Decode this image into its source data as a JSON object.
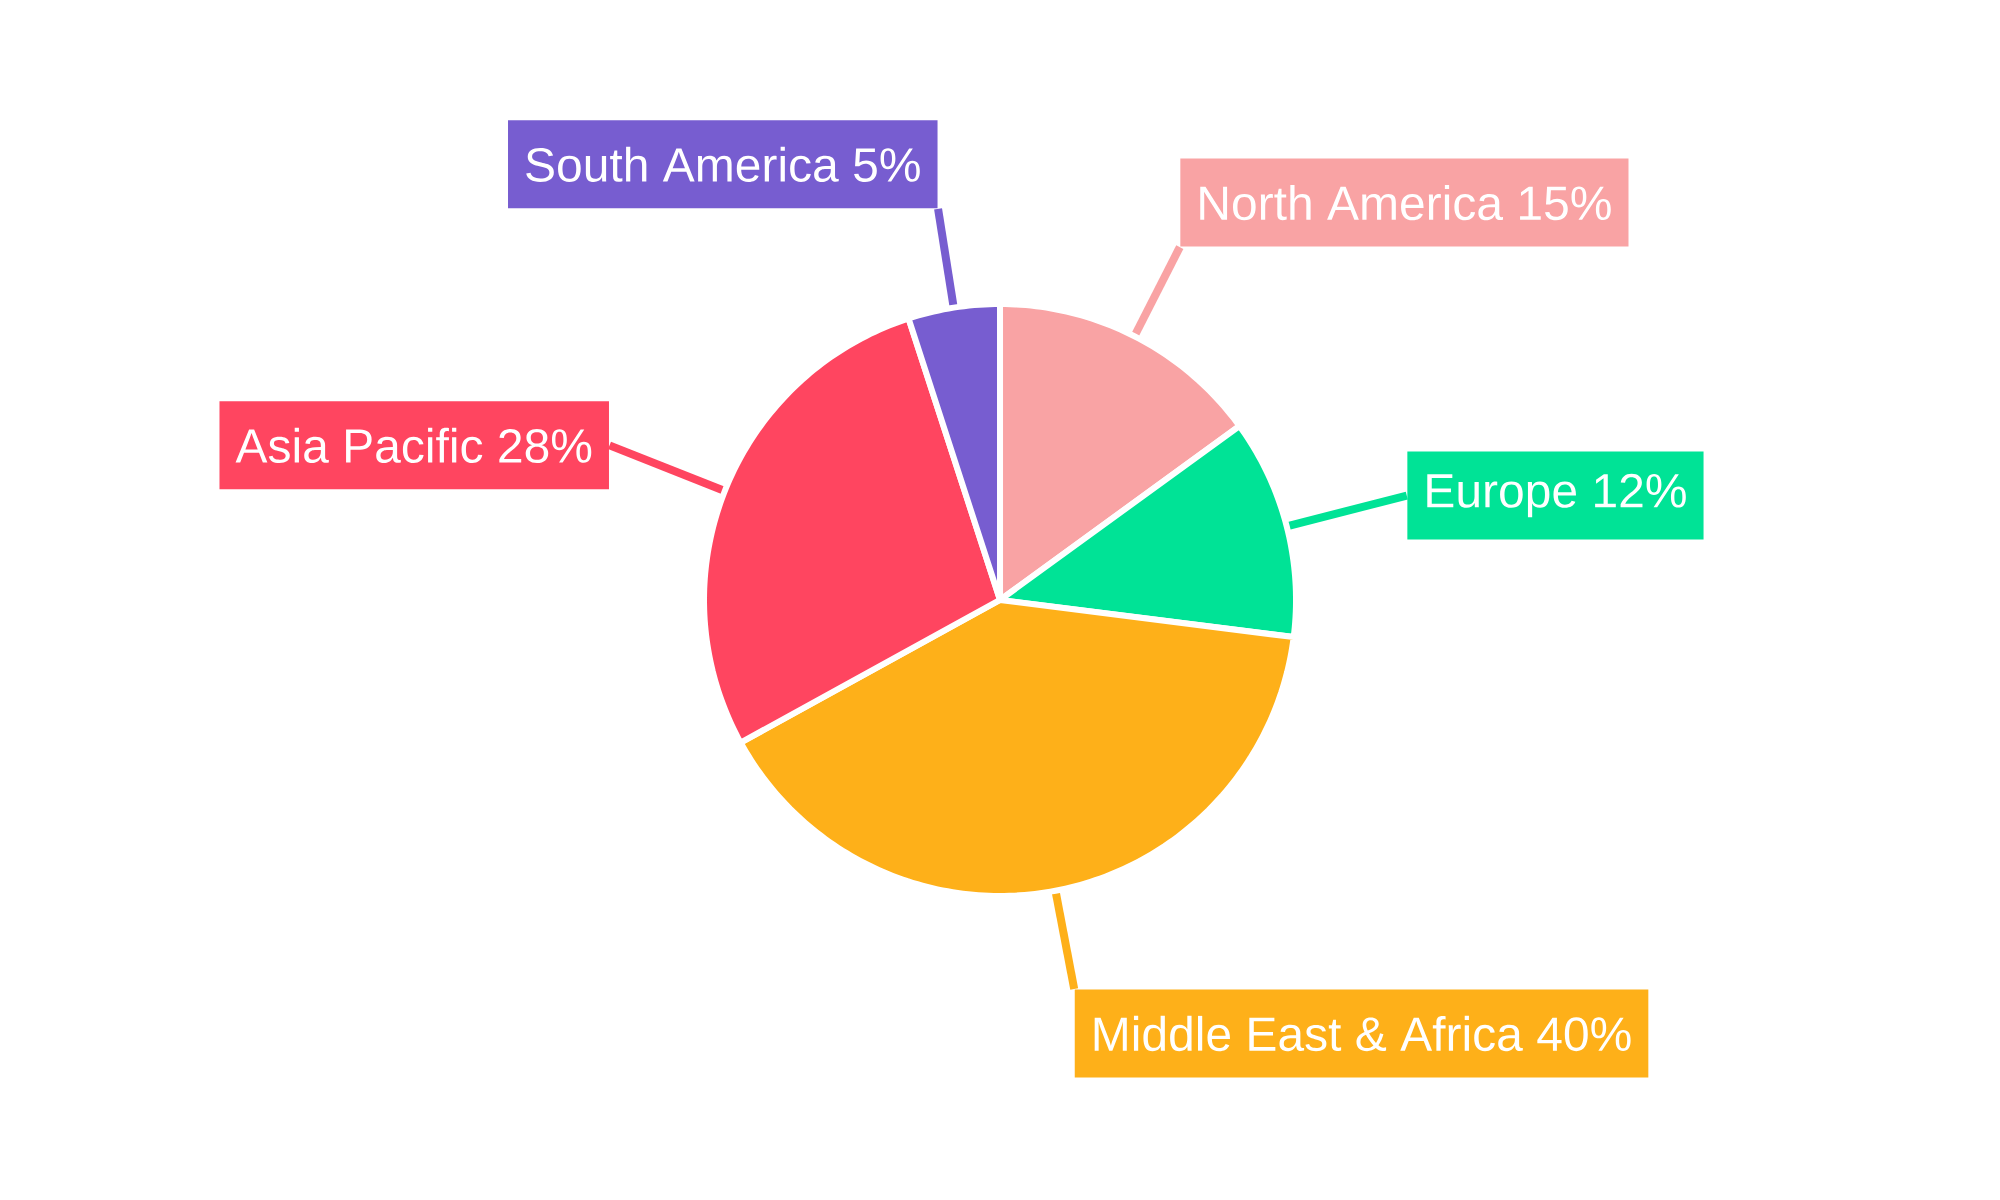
{
  "chart_data": {
    "type": "pie",
    "categories": [
      "North America",
      "Europe",
      "Middle East & Africa",
      "Asia Pacific",
      "South America"
    ],
    "values": [
      15,
      12,
      40,
      28,
      5
    ],
    "value_labels": [
      "15%",
      "12%",
      "40%",
      "28%",
      "5%"
    ],
    "colors": [
      "#f9a3a4",
      "#00e396",
      "#feb019",
      "#ff4560",
      "#775dd0"
    ]
  }
}
